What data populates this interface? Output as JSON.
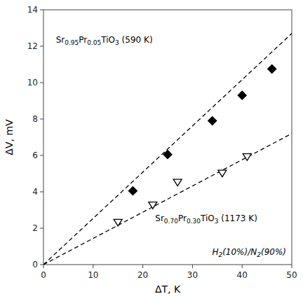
{
  "chart_data": {
    "type": "scatter",
    "xlabel": "ΔT, K",
    "ylabel": "ΔV, mV",
    "annotation": "H2(10%)/N2(90%)",
    "xlim": [
      0,
      50
    ],
    "ylim": [
      0,
      14
    ],
    "xticks": [
      0,
      10,
      20,
      30,
      40,
      50
    ],
    "yticks": [
      0,
      2,
      4,
      6,
      8,
      10,
      12,
      14
    ],
    "grid": false,
    "series": [
      {
        "type": "line",
        "line_style": "dashed",
        "color": "#000000",
        "x": [
          0,
          50
        ],
        "values": [
          0.0,
          12.7
        ]
      },
      {
        "type": "line",
        "line_style": "dashed",
        "color": "#000000",
        "x": [
          0,
          50
        ],
        "values": [
          0.0,
          7.2
        ]
      },
      {
        "type": "scatter",
        "name": "Sr0.95Pr0.05TiO3 (590 K)",
        "marker": "diamond",
        "color": "#000000",
        "x": [
          18,
          25,
          34,
          40,
          46
        ],
        "values": [
          4.05,
          6.05,
          7.9,
          9.3,
          10.75
        ]
      },
      {
        "type": "scatter",
        "name": "Sr0.70Pr0.30TiO3 (1173 K)",
        "marker": "open-triangle-down",
        "color": "#000000",
        "x": [
          15,
          22,
          27,
          36,
          41
        ],
        "values": [
          2.35,
          3.3,
          4.55,
          5.05,
          5.95
        ]
      }
    ]
  }
}
